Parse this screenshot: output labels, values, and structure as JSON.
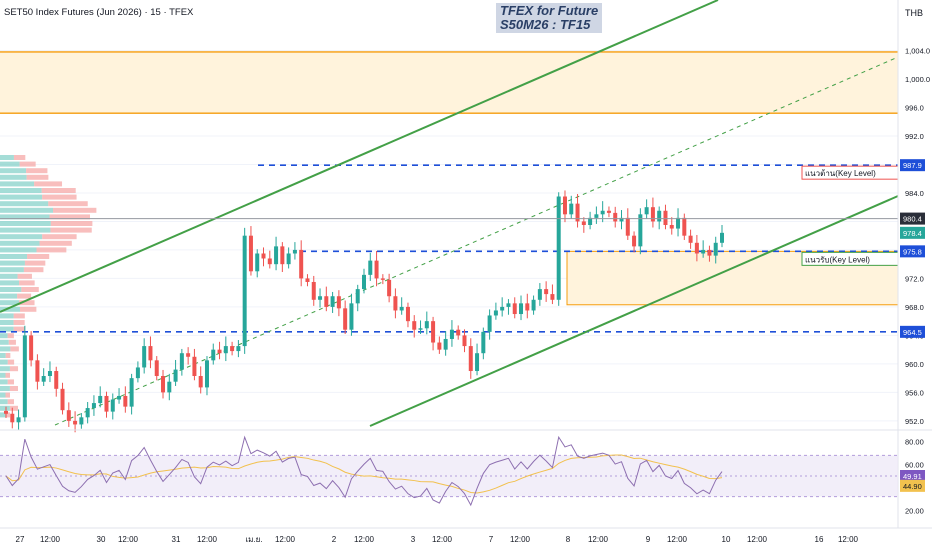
{
  "header": {
    "title": "SET50 Index Futures (Jun 2026) · 15 · TFEX",
    "watermark_line1": "TFEX for Future",
    "watermark_line2": "S50M26 : TF15",
    "currency": "THB"
  },
  "colors": {
    "up": "#26a69a",
    "down": "#ef5350",
    "channel": "#43a047",
    "level": "#1e4fd8",
    "zone_border": "#f59c0c",
    "zone_fill": "#fff3dc",
    "rsi": "#8d6fb0",
    "rsi_ma": "#f2c14e"
  },
  "chart_data": {
    "type": "candlestick",
    "y_axis_labels": [
      "1,004.0",
      "1,000.0",
      "996.0",
      "992.0",
      "988.0",
      "984.0",
      "980.0",
      "976.0",
      "972.0",
      "968.0",
      "964.0",
      "960.0",
      "956.0",
      "952.0"
    ],
    "ylim": [
      951,
      1008
    ],
    "price_marks": [
      {
        "label": "987.9",
        "value": 987.9,
        "color": "#1e4fd8"
      },
      {
        "label": "980.4",
        "value": 980.4,
        "color": "#2a2e39"
      },
      {
        "label": "978.4",
        "value": 978.4,
        "color": "#26a69a"
      },
      {
        "label": "975.8",
        "value": 975.8,
        "color": "#1e4fd8"
      },
      {
        "label": "964.5",
        "value": 964.5,
        "color": "#1e4fd8"
      }
    ],
    "x_axis_labels": [
      "27",
      "12:00",
      "30",
      "12:00",
      "31",
      "12:00",
      "เม.ย.",
      "12:00",
      "2",
      "12:00",
      "3",
      "12:00",
      "7",
      "12:00",
      "8",
      "12:00",
      "9",
      "12:00",
      "10",
      "12:00",
      "16",
      "12:00"
    ],
    "horizontal_levels": [
      987.9,
      975.8,
      964.5
    ],
    "resistance_zone": [
      995.2,
      1003.8
    ],
    "support_zone": [
      968.3,
      975.8
    ],
    "resistance_label": "แนวต้าน(Key Level)",
    "support_label": "แนวรับ(Key Level)",
    "closes": [
      953.0,
      951.8,
      952.5,
      964.0,
      960.5,
      957.5,
      958.3,
      959.0,
      956.5,
      953.5,
      952.0,
      951.5,
      952.5,
      953.8,
      954.5,
      955.5,
      953.3,
      955.0,
      955.5,
      954.0,
      958.0,
      959.5,
      962.5,
      960.5,
      958.3,
      956.0,
      957.5,
      959.2,
      961.5,
      961.0,
      958.3,
      956.7,
      960.5,
      962.0,
      961.5,
      962.5,
      961.8,
      962.5,
      978.0,
      973.0,
      975.5,
      974.8,
      974.0,
      976.5,
      974.0,
      975.5,
      976.0,
      972.0,
      971.5,
      969.0,
      969.5,
      968.0,
      969.5,
      967.8,
      964.8,
      968.5,
      970.5,
      972.5,
      974.5,
      972.0,
      971.8,
      969.5,
      967.5,
      968.0,
      966.0,
      964.8,
      965.0,
      966.0,
      963.0,
      962.0,
      963.5,
      964.8,
      964.0,
      962.5,
      959.0,
      961.5,
      964.5,
      966.8,
      967.5,
      968.0,
      968.5,
      967.0,
      968.5,
      967.5,
      969.0,
      970.5,
      969.8,
      969.0,
      983.5,
      981.0,
      982.5,
      980.0,
      979.5,
      980.5,
      981.0,
      981.5,
      981.2,
      980.0,
      980.5,
      978.0,
      976.5,
      981.0,
      982.0,
      980.0,
      981.5,
      979.5,
      979.0,
      980.5,
      978.0,
      977.0,
      975.5,
      976.0,
      975.2,
      977.0,
      978.4
    ],
    "rsi": {
      "levels": [
        80,
        60,
        50,
        40
      ],
      "labels": [
        "80.00",
        "60.00",
        "40.00",
        "20.00"
      ],
      "value": "49.91",
      "ma_value": "44.90",
      "ylim": [
        15,
        85
      ]
    }
  }
}
